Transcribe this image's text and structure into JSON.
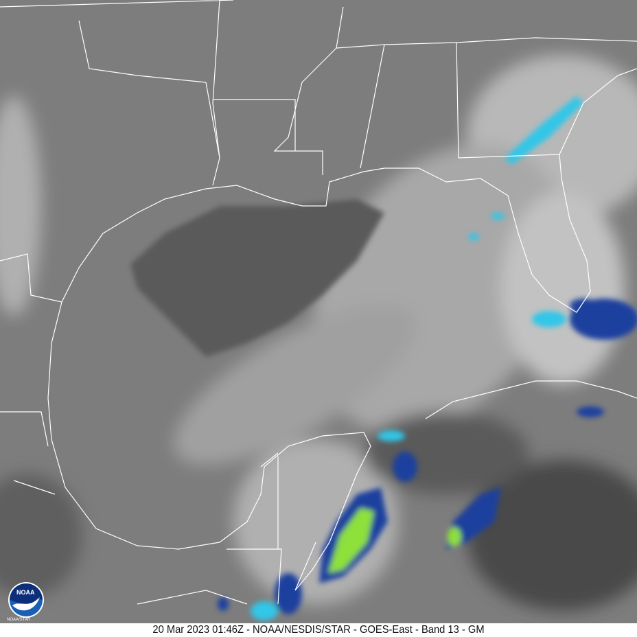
{
  "caption": "20 Mar 2023 01:46Z - NOAA/NESDIS/STAR - GOES-East - Band 13 - GM",
  "logo": {
    "name": "NOAA",
    "sub": "NOAA/STAR"
  },
  "colors": {
    "land": "#7d7d7d",
    "gulf": "#5a5a5a",
    "cloud": "#bcbcbc",
    "borders": "#ffffff",
    "cold_top_cyan": "#33c6e8",
    "cold_top_blue": "#1a3f9e",
    "cold_top_green": "#8ee03a"
  }
}
